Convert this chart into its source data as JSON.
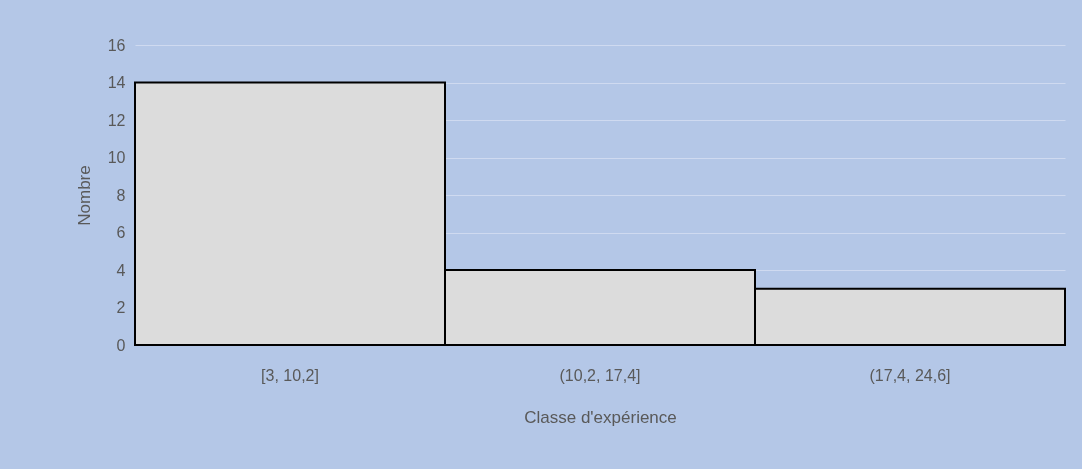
{
  "chart_data": {
    "type": "bar",
    "xlabel": "Classe d'expérience",
    "ylabel": "Nombre",
    "categories": [
      "[3, 10,2]",
      "(10,2, 17,4]",
      "(17,4, 24,6]"
    ],
    "values": [
      14,
      4,
      3
    ],
    "color": "#dcdcdc",
    "ylim": [
      0,
      16
    ],
    "yticks": [
      0,
      2,
      4,
      6,
      8,
      10,
      12,
      14,
      16
    ],
    "grid": "y"
  }
}
